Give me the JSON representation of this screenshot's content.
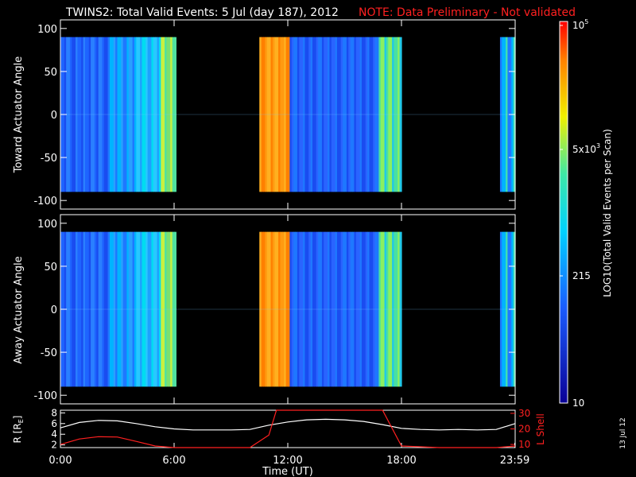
{
  "header": {
    "title": "TWINS2: Total Valid Events:  5 Jul (day 187), 2012",
    "note": "NOTE: Data Preliminary - Not validated",
    "note_color": "#ff2020"
  },
  "side_date": "13 Jul 12",
  "chart_data": [
    {
      "type": "heatmap",
      "ylabel": "Toward Actuator Angle",
      "ylim": [
        -110,
        110
      ],
      "yticks": [
        "100",
        "50",
        "0",
        "-50",
        "-100"
      ],
      "data_range_y": [
        -90,
        90
      ],
      "xlim": [
        0,
        24
      ],
      "gaps_hours": [
        [
          6.0,
          10.4
        ],
        [
          17.9,
          23.2
        ]
      ]
    },
    {
      "type": "heatmap",
      "ylabel": "Away Actuator Angle",
      "ylim": [
        -110,
        110
      ],
      "yticks": [
        "100",
        "50",
        "0",
        "-50",
        "-100"
      ],
      "data_range_y": [
        -90,
        90
      ],
      "xlim": [
        0,
        24
      ],
      "gaps_hours": [
        [
          6.0,
          10.4
        ],
        [
          17.9,
          23.2
        ]
      ]
    },
    {
      "type": "line",
      "ylabel_left": "R [R",
      "ylabel_left_sub": "E",
      "ylabel_left_end": "]",
      "ylabel_right": "L Shell",
      "yticks_left": [
        "8",
        "6",
        "4",
        "2"
      ],
      "yticks_right": [
        "30",
        "20",
        "10"
      ],
      "xlabel": "Time (UT)",
      "xticks": [
        "0:00",
        "6:00",
        "12:00",
        "18:00",
        "23:59"
      ],
      "series": [
        {
          "color": "#ffffff",
          "x": [
            0,
            1,
            2,
            3,
            4,
            5,
            6,
            7,
            8,
            9,
            10,
            11,
            12,
            13,
            14,
            15,
            16,
            17,
            18,
            19,
            20,
            21,
            22,
            23,
            24
          ],
          "y": [
            5.2,
            6.2,
            6.6,
            6.5,
            6.0,
            5.4,
            5.0,
            4.8,
            4.8,
            4.8,
            4.9,
            5.7,
            6.3,
            6.7,
            6.8,
            6.7,
            6.4,
            5.8,
            5.1,
            4.9,
            4.8,
            4.9,
            4.8,
            4.9,
            6.0
          ]
        },
        {
          "color": "#ff2020",
          "x": [
            0,
            1,
            2,
            3,
            4,
            5,
            6,
            7,
            8,
            9,
            10,
            11,
            11.4,
            17.0,
            18,
            19,
            20,
            21,
            22,
            23,
            24
          ],
          "y": [
            10.0,
            13.5,
            15.0,
            14.8,
            12.0,
            9.0,
            6.0,
            6.5,
            7.0,
            7.5,
            8.0,
            16.0,
            32.0,
            32.0,
            9.0,
            8.5,
            8.0,
            7.5,
            7.0,
            6.0,
            9.0
          ]
        }
      ]
    }
  ],
  "colorbar": {
    "label": "LOG10(Total Valid Events per Scan)",
    "ticks": [
      "10",
      "215",
      "5x10",
      "10"
    ],
    "tick_exponents": [
      "",
      "",
      "3",
      "5"
    ]
  }
}
